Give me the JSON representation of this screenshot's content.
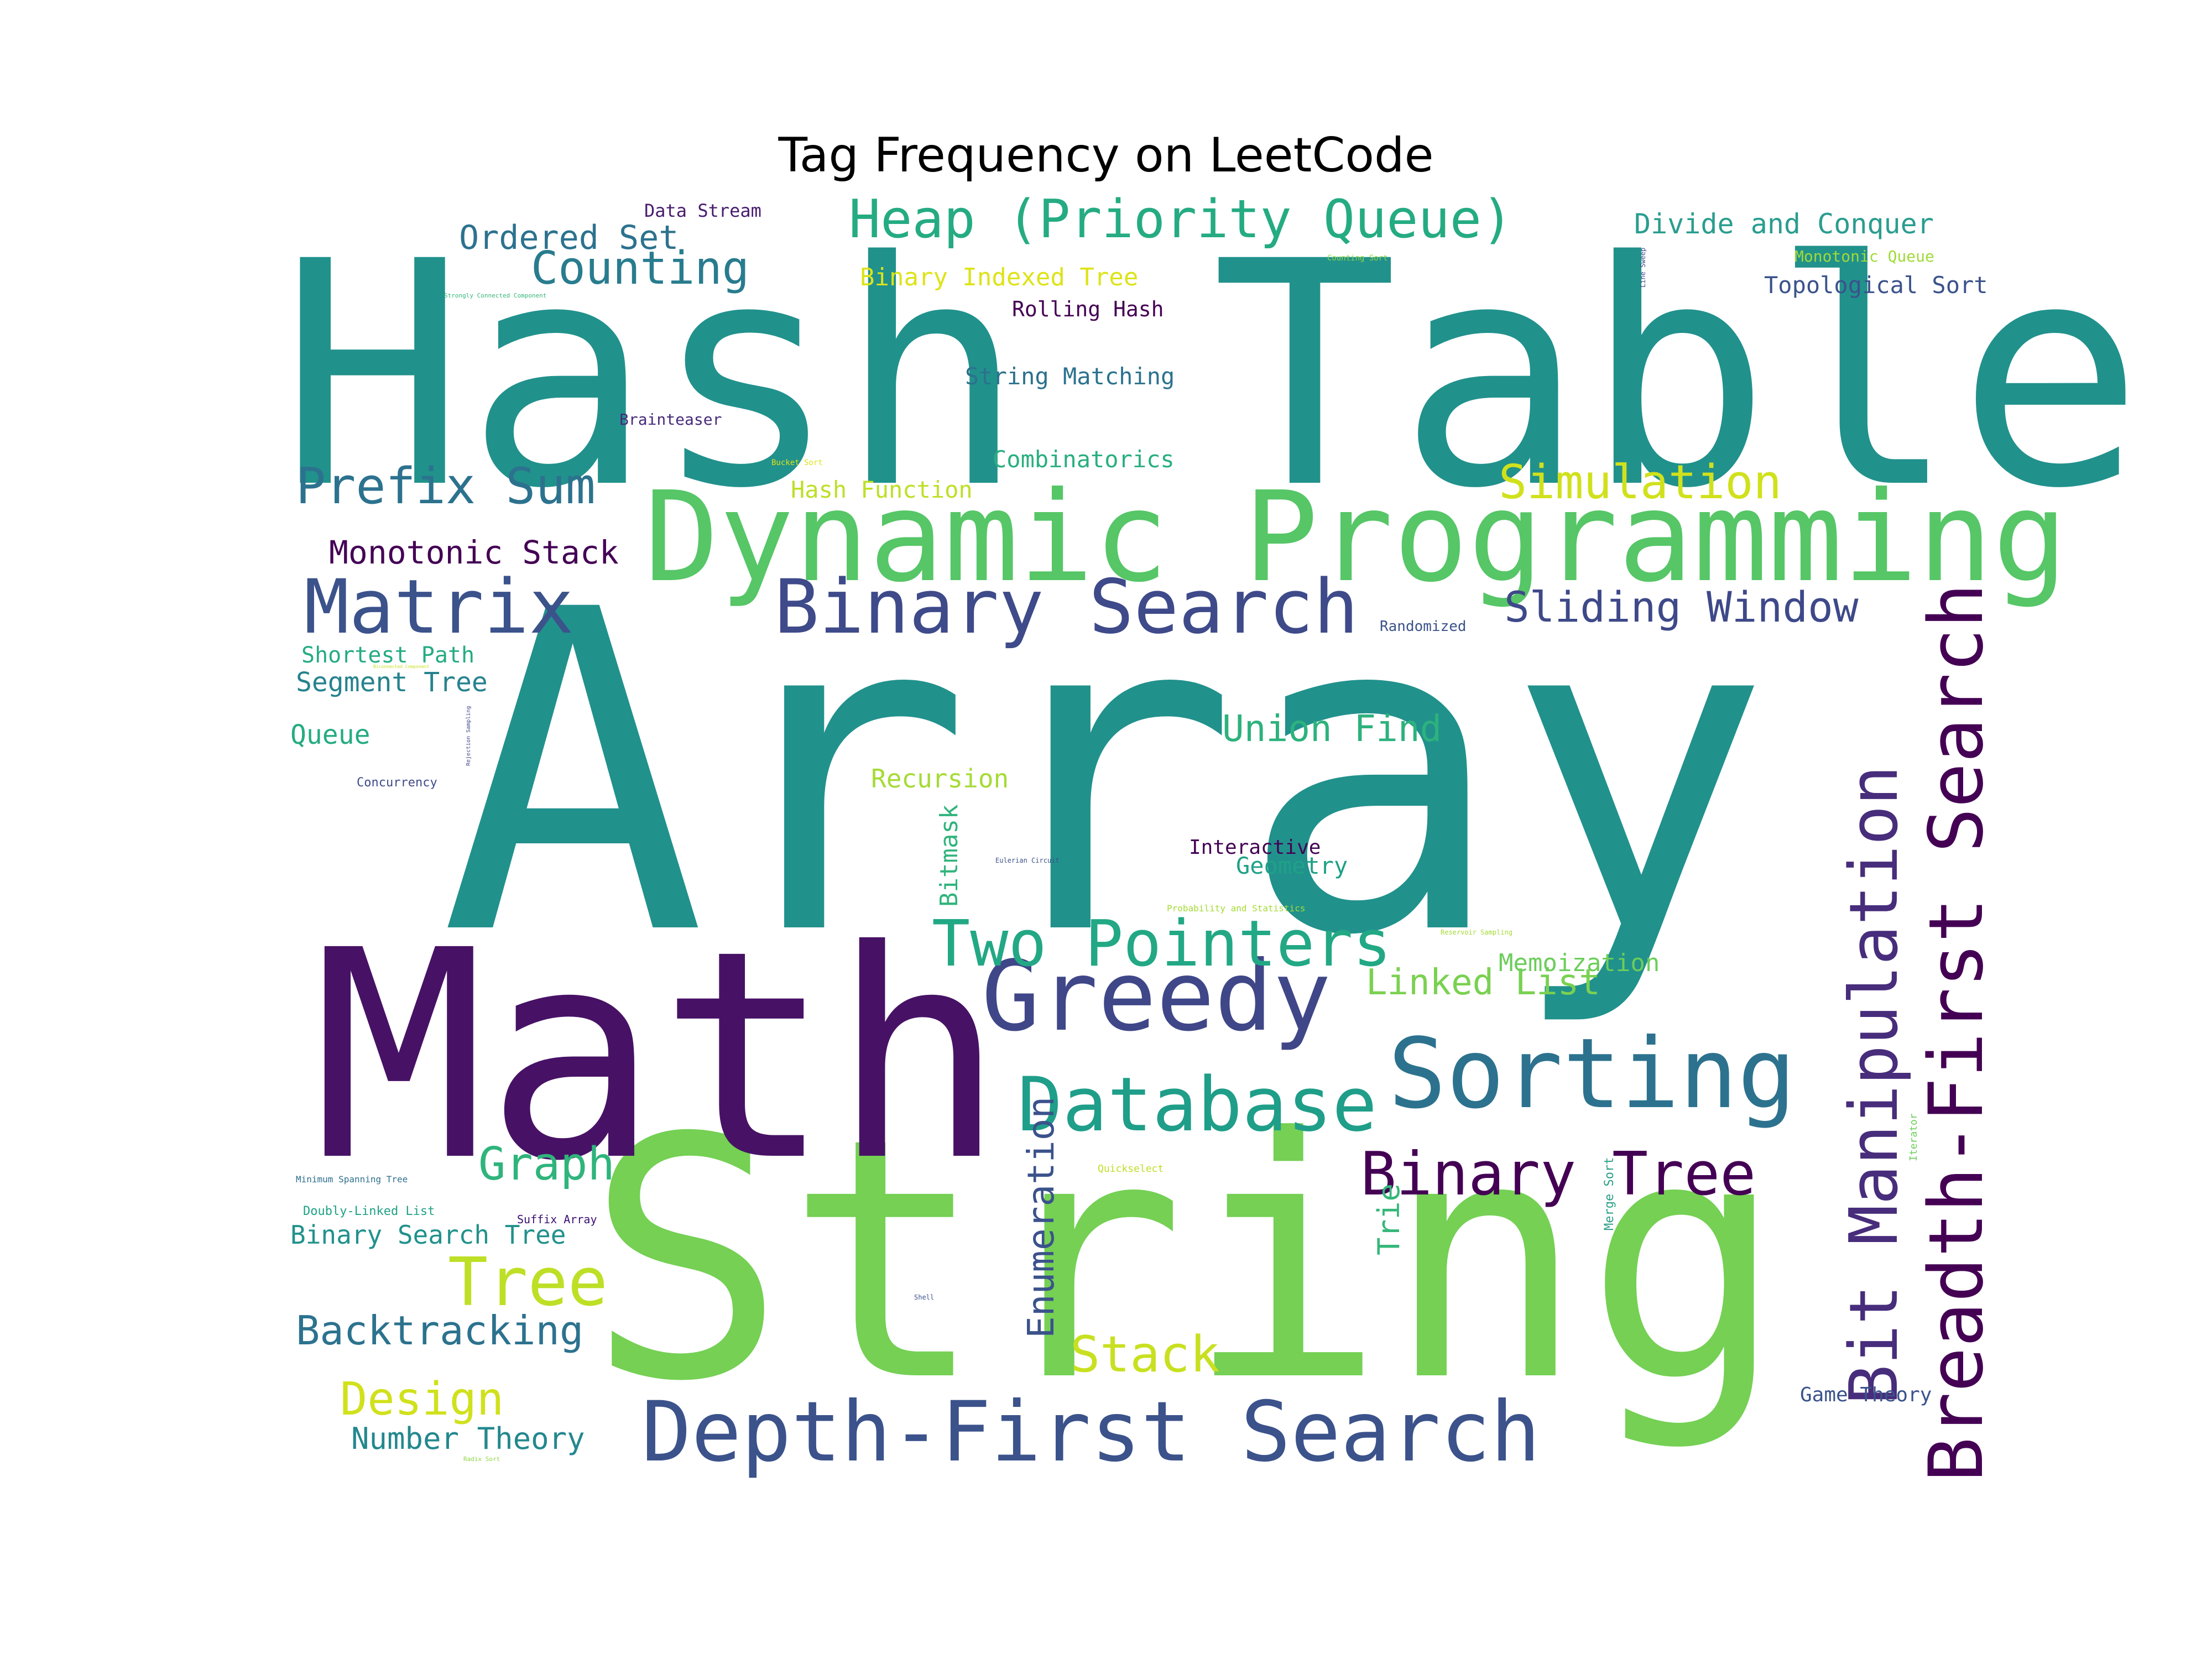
{
  "chart_data": {
    "type": "wordcloud",
    "title": "Tag Frequency on LeetCode",
    "colormap": "viridis",
    "background": "#ffffff",
    "words": [
      {
        "text": "Array",
        "weight": 100,
        "color": "#21918c"
      },
      {
        "text": "String",
        "weight": 72,
        "color": "#75d054"
      },
      {
        "text": "Hash Table",
        "weight": 60,
        "color": "#21918c"
      },
      {
        "text": "Math",
        "weight": 58,
        "color": "#471265"
      },
      {
        "text": "Dynamic Programming",
        "weight": 44,
        "color": "#56c667"
      },
      {
        "text": "Sorting",
        "weight": 30,
        "color": "#2c728e"
      },
      {
        "text": "Greedy",
        "weight": 30,
        "color": "#3f4788"
      },
      {
        "text": "Depth-First Search",
        "weight": 24,
        "color": "#3b528b"
      },
      {
        "text": "Binary Search",
        "weight": 24,
        "color": "#3e4a89"
      },
      {
        "text": "Database",
        "weight": 23,
        "color": "#1f9e89"
      },
      {
        "text": "Breadth-First Search",
        "weight": 22,
        "color": "#440154"
      },
      {
        "text": "Matrix",
        "weight": 22,
        "color": "#3b528b"
      },
      {
        "text": "Tree",
        "weight": 20,
        "color": "#bddf26"
      },
      {
        "text": "Bit Manipulation",
        "weight": 20,
        "color": "#472d7b"
      },
      {
        "text": "Two Pointers",
        "weight": 19,
        "color": "#22a884"
      },
      {
        "text": "Binary Tree",
        "weight": 17,
        "color": "#440154"
      },
      {
        "text": "Heap (Priority Queue)",
        "weight": 16,
        "color": "#25ab82"
      },
      {
        "text": "Prefix Sum",
        "weight": 15,
        "color": "#2c728e"
      },
      {
        "text": "Stack",
        "weight": 15,
        "color": "#c8e020"
      },
      {
        "text": "Simulation",
        "weight": 15,
        "color": "#d0e11c"
      },
      {
        "text": "Counting",
        "weight": 14,
        "color": "#287c8e"
      },
      {
        "text": "Graph",
        "weight": 14,
        "color": "#2fb47c"
      },
      {
        "text": "Design",
        "weight": 14,
        "color": "#d0e11c"
      },
      {
        "text": "Backtracking",
        "weight": 13,
        "color": "#2c728e"
      },
      {
        "text": "Sliding Window",
        "weight": 13,
        "color": "#3e4989"
      },
      {
        "text": "Enumeration",
        "weight": 13,
        "color": "#3b528b"
      },
      {
        "text": "Union Find",
        "weight": 12,
        "color": "#2db27d"
      },
      {
        "text": "Linked List",
        "weight": 12,
        "color": "#7ad151"
      },
      {
        "text": "Ordered Set",
        "weight": 11,
        "color": "#2c728e"
      },
      {
        "text": "Monotonic Stack",
        "weight": 11,
        "color": "#440154"
      },
      {
        "text": "Number Theory",
        "weight": 10,
        "color": "#23888e"
      },
      {
        "text": "Trie",
        "weight": 10,
        "color": "#35b779"
      },
      {
        "text": "Segment Tree",
        "weight": 9,
        "color": "#26828e"
      },
      {
        "text": "Divide and Conquer",
        "weight": 9,
        "color": "#2a9d8f"
      },
      {
        "text": "Queue",
        "weight": 9,
        "color": "#25ab82"
      },
      {
        "text": "Recursion",
        "weight": 9,
        "color": "#a5db36"
      },
      {
        "text": "Memoization",
        "weight": 9,
        "color": "#6ccd5a"
      },
      {
        "text": "Binary Search Tree",
        "weight": 9,
        "color": "#21918c"
      },
      {
        "text": "Bitmask",
        "weight": 8,
        "color": "#2fb47c"
      },
      {
        "text": "Geometry",
        "weight": 8,
        "color": "#1fa187"
      },
      {
        "text": "Binary Indexed Tree",
        "weight": 8,
        "color": "#dde318"
      },
      {
        "text": "Hash Function",
        "weight": 8,
        "color": "#bddf26"
      },
      {
        "text": "Combinatorics",
        "weight": 8,
        "color": "#29af7f"
      },
      {
        "text": "Topological Sort",
        "weight": 8,
        "color": "#3b528b"
      },
      {
        "text": "String Matching",
        "weight": 8,
        "color": "#2c728e"
      },
      {
        "text": "Shortest Path",
        "weight": 8,
        "color": "#25ab82"
      },
      {
        "text": "Game Theory",
        "weight": 7,
        "color": "#3b528b"
      },
      {
        "text": "Rolling Hash",
        "weight": 7,
        "color": "#440154"
      },
      {
        "text": "Interactive",
        "weight": 7,
        "color": "#440154"
      },
      {
        "text": "Data Stream",
        "weight": 6,
        "color": "#481c6e"
      },
      {
        "text": "Brainteaser",
        "weight": 6,
        "color": "#472a7a"
      },
      {
        "text": "Monotonic Queue",
        "weight": 5,
        "color": "#a0da39"
      },
      {
        "text": "Randomized",
        "weight": 5,
        "color": "#3b528b"
      },
      {
        "text": "Merge Sort",
        "weight": 4,
        "color": "#2c9f86"
      },
      {
        "text": "Doubly-Linked List",
        "weight": 4,
        "color": "#1fa187"
      },
      {
        "text": "Concurrency",
        "weight": 4,
        "color": "#3e4a89"
      },
      {
        "text": "Suffix Array",
        "weight": 4,
        "color": "#3b0f70"
      },
      {
        "text": "Quickselect",
        "weight": 3,
        "color": "#bddf26"
      },
      {
        "text": "Iterator",
        "weight": 3,
        "color": "#6ccd5a"
      },
      {
        "text": "Minimum Spanning Tree",
        "weight": 3,
        "color": "#2e6f8e"
      },
      {
        "text": "Probability and Statistics",
        "weight": 3,
        "color": "#a5db36"
      },
      {
        "text": "Counting Sort",
        "weight": 2,
        "color": "#8fd744"
      },
      {
        "text": "Line Sweep",
        "weight": 2,
        "color": "#3e4a89"
      },
      {
        "text": "Bucket Sort",
        "weight": 2,
        "color": "#dde318"
      },
      {
        "text": "Strongly Connected Component",
        "weight": 2,
        "color": "#35b779"
      },
      {
        "text": "Eulerian Circuit",
        "weight": 2,
        "color": "#3b528b"
      },
      {
        "text": "Reservoir Sampling",
        "weight": 2,
        "color": "#a5db36"
      },
      {
        "text": "Rejection Sampling",
        "weight": 2,
        "color": "#3e4989"
      },
      {
        "text": "Radix Sort",
        "weight": 2,
        "color": "#8fd744"
      },
      {
        "text": "Shell",
        "weight": 2,
        "color": "#3b528b"
      },
      {
        "text": "Biconnected Component",
        "weight": 1,
        "color": "#c8e020"
      }
    ]
  }
}
